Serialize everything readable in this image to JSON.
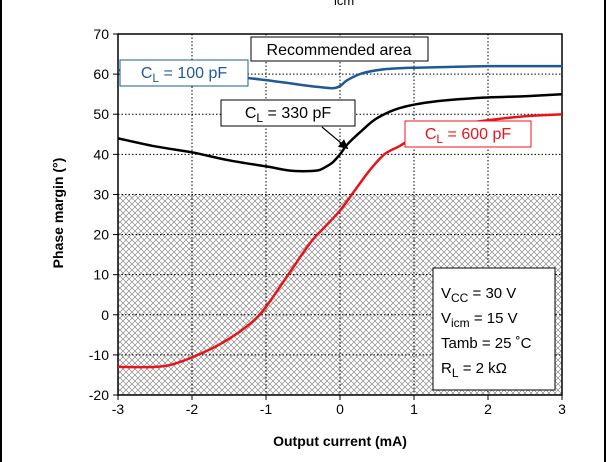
{
  "chart_data": {
    "type": "line",
    "header_fragment": "icm",
    "xlabel": "Output current (mA)",
    "ylabel": "Phase margin (°)",
    "xlim": [
      -3,
      3
    ],
    "ylim": [
      -20,
      70
    ],
    "x_ticks": [
      "-3",
      "-2",
      "-1",
      "0",
      "1",
      "2",
      "3"
    ],
    "y_ticks": [
      "-20",
      "-10",
      "0",
      "10",
      "20",
      "30",
      "40",
      "50",
      "60",
      "70"
    ],
    "grid": true,
    "recommended_area_label": "Recommended area",
    "hatched_region_y": [
      -20,
      30
    ],
    "series": [
      {
        "name_main": "C",
        "name_sub": "L",
        "name_rest": " = 100 pF",
        "color": "#1f5a96",
        "x": [
          -3,
          -2.5,
          -2,
          -1.5,
          -1,
          -0.6,
          -0.3,
          -0.1,
          0,
          0.1,
          0.3,
          0.6,
          1,
          1.5,
          2,
          2.5,
          3
        ],
        "y": [
          61,
          60.5,
          60,
          59.5,
          58.5,
          57.5,
          56.8,
          56.5,
          57,
          58.5,
          60.2,
          61.2,
          61.6,
          61.8,
          62,
          62,
          62
        ]
      },
      {
        "name_main": "C",
        "name_sub": "L",
        "name_rest": " = 330 pF",
        "color": "#000000",
        "x": [
          -3,
          -2.5,
          -2,
          -1.5,
          -1,
          -0.7,
          -0.5,
          -0.3,
          -0.2,
          -0.1,
          0,
          0.1,
          0.3,
          0.5,
          0.8,
          1.2,
          1.8,
          2.5,
          3
        ],
        "y": [
          44,
          42,
          40.5,
          38.5,
          37,
          36,
          35.8,
          36,
          36.8,
          38,
          40,
          42.5,
          46,
          49,
          51.5,
          53,
          54,
          54.5,
          55
        ]
      },
      {
        "name_main": "C",
        "name_sub": "L",
        "name_rest": " = 600 pF",
        "color": "#e8141b",
        "x": [
          -3,
          -2.5,
          -2.2,
          -1.8,
          -1.5,
          -1.2,
          -1,
          -0.7,
          -0.4,
          -0.2,
          0,
          0.2,
          0.4,
          0.6,
          0.8,
          1,
          1.5,
          2,
          2.5,
          3
        ],
        "y": [
          -13,
          -13,
          -12,
          -9,
          -6,
          -2,
          2,
          10,
          18,
          22,
          26,
          31,
          36,
          40,
          42,
          44,
          47,
          48.5,
          49.5,
          50
        ]
      }
    ],
    "conditions": [
      {
        "main": "V",
        "sub": "CC",
        "rest": " = 30 V"
      },
      {
        "main": "V",
        "sub": "icm",
        "rest": " = 15 V"
      },
      {
        "main": "Tamb",
        "sub": "",
        "rest": " = 25 ˚C"
      },
      {
        "main": "R",
        "sub": "L",
        "rest": " = 2 kΩ"
      }
    ]
  }
}
